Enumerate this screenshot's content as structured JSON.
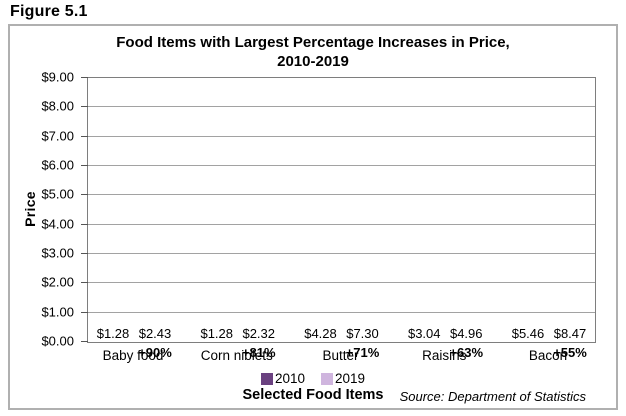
{
  "figure": {
    "label": "Figure 5.1",
    "source": "Source: Department of Statistics"
  },
  "chart_data": {
    "type": "bar",
    "title": "Food Items with Largest Percentage Increases in Price,",
    "subtitle": "2010-2019",
    "xlabel": "Selected Food Items",
    "ylabel": "Price",
    "ylim": [
      0,
      9
    ],
    "ytick_step": 1,
    "ytick_labels": [
      "$0.00",
      "$1.00",
      "$2.00",
      "$3.00",
      "$4.00",
      "$5.00",
      "$6.00",
      "$7.00",
      "$8.00",
      "$9.00"
    ],
    "grid": true,
    "legend_position": "bottom",
    "categories": [
      "Baby food",
      "Corn niblets",
      "Butter",
      "Raisins",
      "Bacon"
    ],
    "series": [
      {
        "name": "2010",
        "color": "#6a4180",
        "values": [
          1.28,
          1.28,
          4.28,
          3.04,
          5.46
        ],
        "value_labels": [
          "$1.28",
          "$1.28",
          "$4.28",
          "$3.04",
          "$5.46"
        ]
      },
      {
        "name": "2019",
        "color": "#cfb5de",
        "values": [
          2.43,
          2.32,
          7.3,
          4.96,
          8.47
        ],
        "value_labels": [
          "$2.43",
          "$2.32",
          "$7.30",
          "$4.96",
          "$8.47"
        ],
        "pct_labels": [
          "+90%",
          "+81%",
          "+71%",
          "+63%",
          "+55%"
        ]
      }
    ]
  }
}
